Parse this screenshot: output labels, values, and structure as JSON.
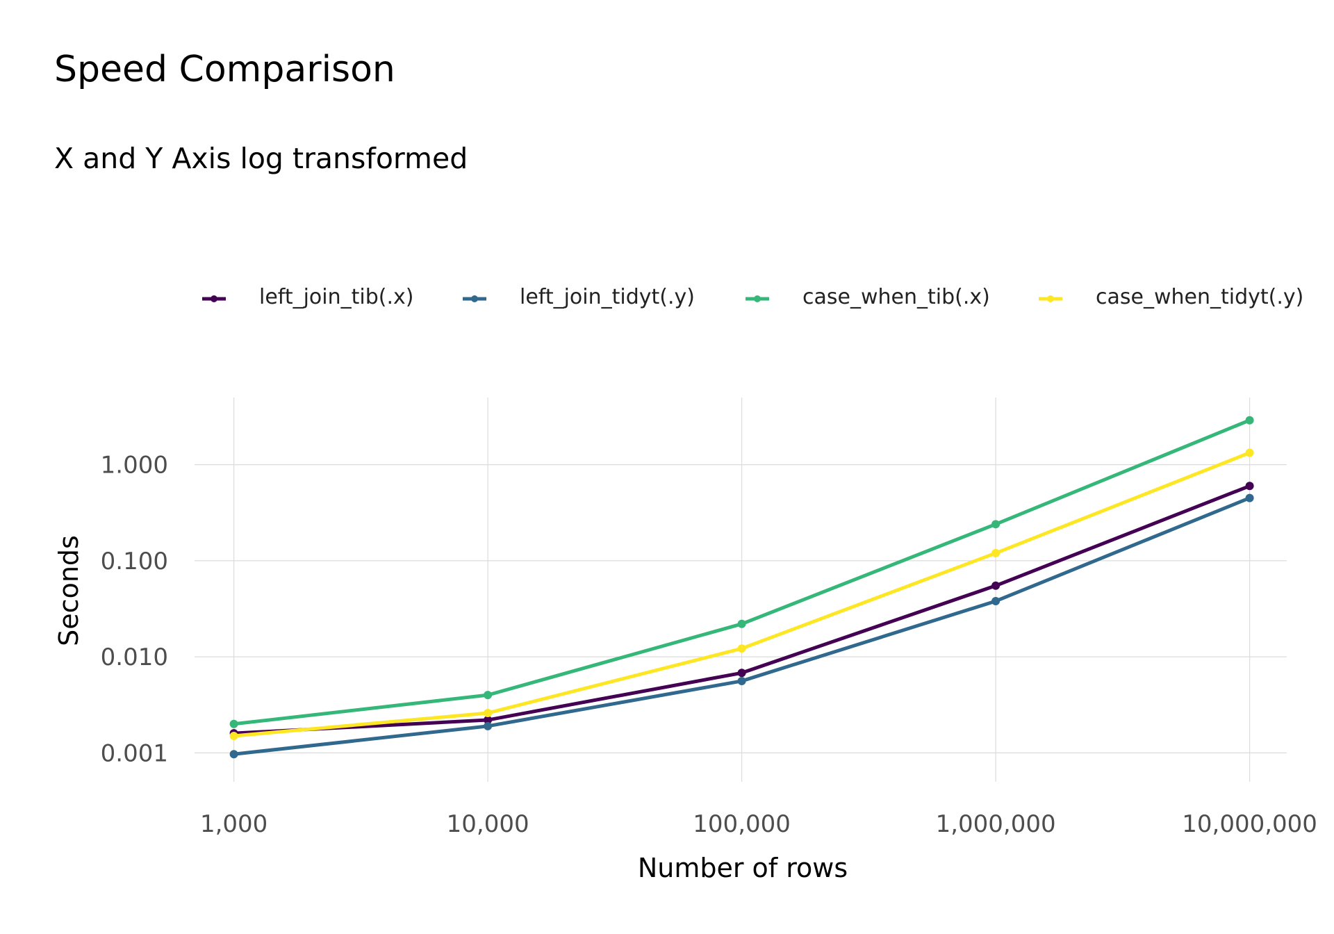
{
  "chart_data": {
    "type": "line",
    "title": "Speed Comparison",
    "subtitle": "X and Y Axis log transformed",
    "xlabel": "Number of rows",
    "ylabel": "Seconds",
    "x_scale": "log10",
    "y_scale": "log10",
    "x": [
      1000,
      10000,
      100000,
      1000000,
      10000000
    ],
    "x_tick_labels": [
      "1,000",
      "10,000",
      "100,000",
      "1,000,000",
      "10,000,000"
    ],
    "y_ticks": [
      0.001,
      0.01,
      0.1,
      1
    ],
    "y_tick_labels": [
      "0.001",
      "0.010",
      "0.100",
      "1.000"
    ],
    "xlim": [
      700,
      14000000
    ],
    "ylim": [
      0.0005,
      5
    ],
    "grid": true,
    "legend_position": "top",
    "series": [
      {
        "name": "left_join_tib(.x)",
        "color": "#440154",
        "values": [
          0.0016,
          0.0022,
          0.0068,
          0.055,
          0.6
        ]
      },
      {
        "name": "left_join_tidyt(.y)",
        "color": "#31688E",
        "values": [
          0.00097,
          0.0019,
          0.0056,
          0.038,
          0.45
        ]
      },
      {
        "name": "case_when_tib(.x)",
        "color": "#35B779",
        "values": [
          0.002,
          0.004,
          0.022,
          0.24,
          2.9
        ]
      },
      {
        "name": "case_when_tidyt(.y)",
        "color": "#FDE725",
        "values": [
          0.0015,
          0.0026,
          0.0122,
          0.12,
          1.33
        ]
      }
    ]
  }
}
